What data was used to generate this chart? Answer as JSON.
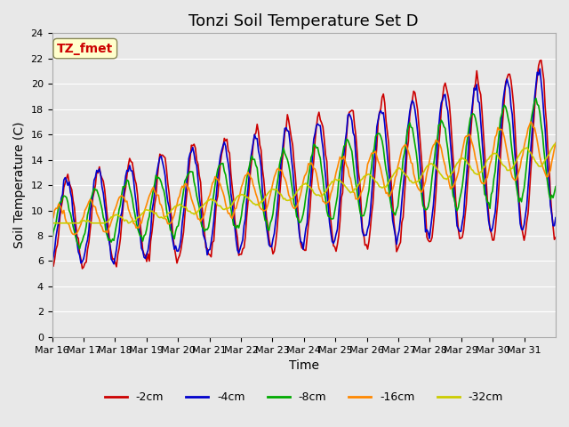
{
  "title": "Tonzi Soil Temperature Set D",
  "xlabel": "Time",
  "ylabel": "Soil Temperature (C)",
  "ylim": [
    0,
    24
  ],
  "yticks": [
    0,
    2,
    4,
    6,
    8,
    10,
    12,
    14,
    16,
    18,
    20,
    22,
    24
  ],
  "xlabels": [
    "Mar 16",
    "Mar 17",
    "Mar 18",
    "Mar 19",
    "Mar 20",
    "Mar 21",
    "Mar 22",
    "Mar 23",
    "Mar 24",
    "Mar 25",
    "Mar 26",
    "Mar 27",
    "Mar 28",
    "Mar 29",
    "Mar 30",
    "Mar 31"
  ],
  "legend_labels": [
    "-2cm",
    "-4cm",
    "-8cm",
    "-16cm",
    "-32cm"
  ],
  "legend_colors": [
    "#cc0000",
    "#0000cc",
    "#00aa00",
    "#ff8800",
    "#cccc00"
  ],
  "line_widths": [
    1.2,
    1.2,
    1.2,
    1.2,
    1.2
  ],
  "annotation_text": "TZ_fmet",
  "annotation_color": "#cc0000",
  "annotation_bg": "#ffffcc",
  "background_color": "#e8e8e8",
  "grid_color": "#ffffff",
  "title_fontsize": 13,
  "label_fontsize": 10,
  "tick_fontsize": 8
}
